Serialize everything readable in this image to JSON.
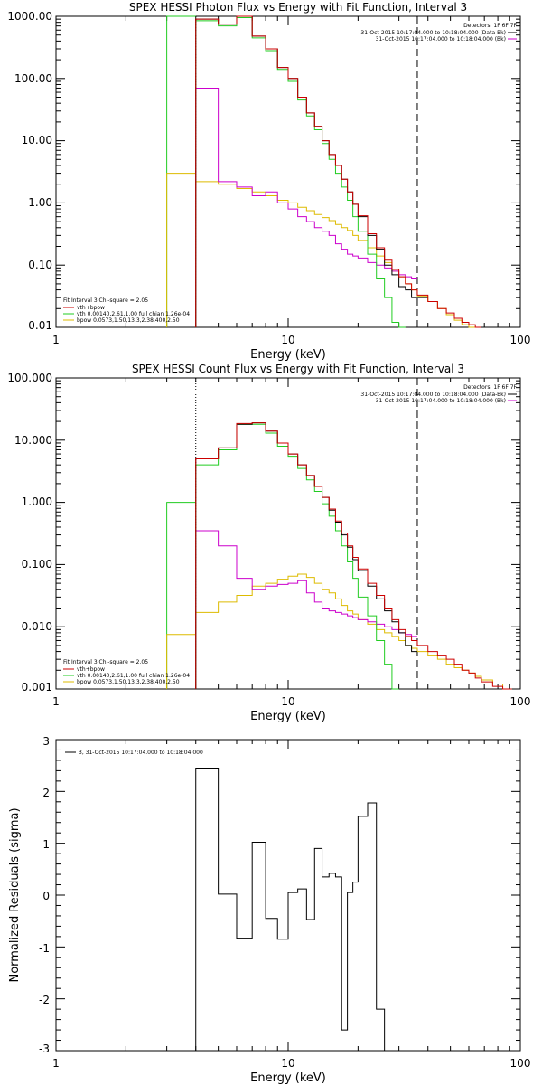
{
  "colors": {
    "total": "#000000",
    "fit_sum": "#cc0000",
    "vth": "#22cc22",
    "bpow": "#ddbb00",
    "magenta": "#cc00cc"
  },
  "chart_data": [
    {
      "type": "line",
      "title": "SPEX HESSI Photon Flux vs Energy with Fit Function, Interval 3",
      "xlabel": "Energy (keV)",
      "ylabel": "",
      "xscale": "log",
      "yscale": "log",
      "xlim": [
        1,
        100
      ],
      "ylim": [
        0.01,
        1000
      ],
      "xtick_labels": [
        "1",
        "10",
        "100"
      ],
      "ytick_labels": [
        "1000.00",
        "100.00",
        "10.00",
        "1.00",
        "0.10",
        "0.01"
      ],
      "legend_top_right": [
        "Detectors: 1F 6F 7F",
        "31-Oct-2015 10:17:04.000 to 10:18:04.000 (Data-Bk)",
        "31-Oct-2015 10:17:04.000 to 10:18:04.000 (Bk)"
      ],
      "legend_bottom_left": [
        "Fit Interval 3   Chi-square = 2.05",
        "vth+bpow",
        "vth 0.00140,2.61,1.00  full chian 1.26e-04",
        "bpow 0.0573,1.50,13.3,2.38,400,2.50"
      ],
      "vlines": [
        4,
        36
      ],
      "edges": [
        4,
        5,
        6,
        7,
        8,
        9,
        10,
        11,
        12,
        13,
        14,
        15,
        16,
        17,
        18,
        19,
        20,
        22,
        24,
        26,
        28,
        30,
        32,
        34,
        36,
        40,
        44,
        48,
        52,
        56,
        60,
        64,
        68
      ],
      "series": [
        {
          "key": "total",
          "values": [
            900,
            750,
            1000,
            480,
            300,
            150,
            100,
            50,
            28,
            17,
            10,
            6,
            4,
            2.4,
            1.5,
            0.95,
            0.6,
            0.3,
            0.18,
            0.1,
            0.07,
            0.045,
            0.04,
            0.03,
            0.03
          ]
        },
        {
          "key": "fit_sum",
          "values": [
            900,
            750,
            1000,
            480,
            300,
            150,
            100,
            50,
            28,
            17,
            10,
            6,
            4,
            2.4,
            1.5,
            0.95,
            0.62,
            0.32,
            0.19,
            0.12,
            0.085,
            0.065,
            0.05,
            0.04,
            0.033,
            0.026,
            0.02,
            0.017,
            0.014,
            0.012,
            0.011,
            0.01
          ]
        },
        {
          "key": "vth",
          "values": [
            850,
            700,
            950,
            450,
            280,
            140,
            90,
            45,
            25,
            15,
            9,
            5,
            3,
            1.8,
            1.1,
            0.6,
            0.35,
            0.15,
            0.06,
            0.03,
            0.012,
            0.005
          ]
        },
        {
          "key": "bpow",
          "values": [
            2.2,
            2.0,
            1.7,
            1.5,
            1.3,
            1.1,
            1.0,
            0.85,
            0.75,
            0.65,
            0.58,
            0.52,
            0.45,
            0.4,
            0.36,
            0.3,
            0.25,
            0.19,
            0.14,
            0.11,
            0.08,
            0.065,
            0.05,
            0.04,
            0.032,
            0.026,
            0.02,
            0.016,
            0.013,
            0.011,
            0.01,
            0.009
          ]
        },
        {
          "key": "magenta",
          "values": [
            70,
            2.2,
            1.8,
            1.3,
            1.5,
            1.0,
            0.8,
            0.6,
            0.5,
            0.4,
            0.35,
            0.3,
            0.22,
            0.18,
            0.15,
            0.14,
            0.13,
            0.11,
            0.1,
            0.09,
            0.08,
            0.07,
            0.065,
            0.06
          ]
        }
      ],
      "pre_steps": [
        {
          "key": "vth",
          "from": 3,
          "to": 4,
          "value": 1000
        },
        {
          "key": "bpow",
          "from": 3,
          "to": 4,
          "value": 3
        }
      ]
    },
    {
      "type": "line",
      "title": "SPEX HESSI Count Flux vs Energy with Fit Function, Interval 3",
      "xlabel": "Energy (keV)",
      "ylabel": "",
      "xscale": "log",
      "yscale": "log",
      "xlim": [
        1,
        100
      ],
      "ylim": [
        0.001,
        100
      ],
      "xtick_labels": [
        "1",
        "10",
        "100"
      ],
      "ytick_labels": [
        "100.000",
        "10.000",
        "1.000",
        "0.100",
        "0.010",
        "0.001"
      ],
      "legend_top_right": [
        "Detectors: 1F 6F 7F",
        "31-Oct-2015 10:17:04.000 to 10:18:04.000 (Data-Bk)",
        "31-Oct-2015 10:17:04.000 to 10:18:04.000 (Bk)"
      ],
      "legend_bottom_left": [
        "Fit Interval 3   Chi-square = 2.05",
        "vth+bpow",
        "vth 0.00140,2.61,1.00  full chian 1.26e-04",
        "bpow 0.0573,1.50,13.3,2.38,400,2.50"
      ],
      "vlines": [
        4,
        36
      ],
      "edges": [
        4,
        5,
        6,
        7,
        8,
        9,
        10,
        11,
        12,
        13,
        14,
        15,
        16,
        17,
        18,
        19,
        20,
        22,
        24,
        26,
        28,
        30,
        32,
        34,
        36,
        40,
        44,
        48,
        52,
        56,
        60,
        64,
        68,
        76,
        84,
        92
      ],
      "series": [
        {
          "key": "total",
          "values": [
            5,
            7.5,
            18,
            19,
            14,
            9,
            6,
            4,
            2.7,
            1.8,
            1.2,
            0.75,
            0.48,
            0.3,
            0.19,
            0.12,
            0.08,
            0.045,
            0.028,
            0.018,
            0.012,
            0.008,
            0.005,
            0.004
          ]
        },
        {
          "key": "fit_sum",
          "values": [
            5,
            7.5,
            18.5,
            19,
            14,
            9,
            6,
            4,
            2.7,
            1.8,
            1.2,
            0.78,
            0.5,
            0.32,
            0.2,
            0.13,
            0.085,
            0.05,
            0.032,
            0.02,
            0.013,
            0.009,
            0.007,
            0.006,
            0.005,
            0.004,
            0.0035,
            0.003,
            0.0025,
            0.002,
            0.0018,
            0.0015,
            0.0013,
            0.0011,
            0.001
          ]
        },
        {
          "key": "vth",
          "values": [
            4,
            7,
            18,
            18,
            13,
            8,
            5.5,
            3.5,
            2.3,
            1.5,
            0.95,
            0.6,
            0.35,
            0.2,
            0.11,
            0.06,
            0.03,
            0.015,
            0.006,
            0.0025,
            0.001
          ]
        },
        {
          "key": "bpow",
          "values": [
            0.017,
            0.025,
            0.032,
            0.045,
            0.05,
            0.058,
            0.065,
            0.07,
            0.062,
            0.05,
            0.04,
            0.035,
            0.028,
            0.022,
            0.018,
            0.016,
            0.013,
            0.011,
            0.009,
            0.008,
            0.007,
            0.006,
            0.005,
            0.0045,
            0.004,
            0.0035,
            0.003,
            0.0025,
            0.0022,
            0.002,
            0.0018,
            0.0016,
            0.0014,
            0.0012,
            0.001
          ]
        },
        {
          "key": "magenta",
          "values": [
            0.35,
            0.2,
            0.06,
            0.04,
            0.045,
            0.048,
            0.05,
            0.055,
            0.035,
            0.025,
            0.02,
            0.018,
            0.017,
            0.016,
            0.015,
            0.014,
            0.013,
            0.012,
            0.011,
            0.01,
            0.009,
            0.008,
            0.0075,
            0.007
          ]
        }
      ],
      "pre_steps": [
        {
          "key": "vth",
          "from": 3,
          "to": 4,
          "value": 1
        },
        {
          "key": "bpow",
          "from": 3,
          "to": 4,
          "value": 0.0075
        }
      ]
    },
    {
      "type": "line",
      "title": "",
      "xlabel": "Energy (keV)",
      "ylabel": "Normalized Residuals (sigma)",
      "xscale": "log",
      "yscale": "linear",
      "xlim": [
        1,
        100
      ],
      "ylim": [
        -3,
        3
      ],
      "xtick_labels": [
        "1",
        "10",
        "100"
      ],
      "ytick_labels": [
        "3",
        "2",
        "1",
        "0",
        "-1",
        "-2",
        "-3"
      ],
      "legend_top_left": [
        "3, 31-Oct-2015 10:17:04.000 to 10:18:04.000"
      ],
      "edges": [
        4,
        5,
        6,
        7,
        8,
        9,
        10,
        11,
        12,
        13,
        14,
        15,
        16,
        17,
        18,
        19,
        20,
        22,
        24,
        26,
        28,
        30,
        32,
        34,
        36
      ],
      "series": [
        {
          "key": "total",
          "values": [
            2.45,
            0.02,
            -0.83,
            1.02,
            -0.45,
            -0.85,
            0.05,
            0.12,
            -0.47,
            0.9,
            0.35,
            0.42,
            0.35,
            -2.6,
            0.05,
            0.25,
            1.52,
            1.78,
            -2.2,
            -3.0
          ]
        }
      ]
    }
  ]
}
